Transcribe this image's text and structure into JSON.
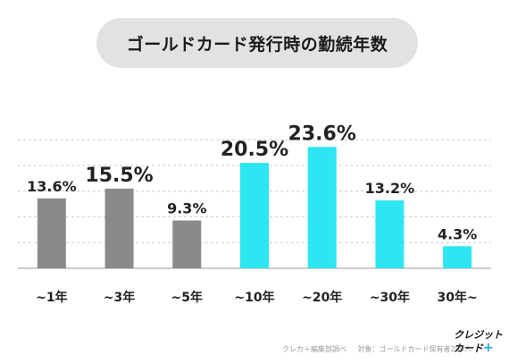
{
  "header": {
    "title": "ゴールドカード発行時の勤続年数"
  },
  "chart_data": {
    "type": "bar",
    "title": "ゴールドカード発行時の勤続年数",
    "categories": [
      "~1年",
      "~3年",
      "~5年",
      "~10年",
      "~20年",
      "~30年",
      "30年~"
    ],
    "values": [
      13.6,
      15.5,
      9.3,
      20.5,
      23.6,
      13.2,
      4.3
    ],
    "value_labels": [
      "13.6%",
      "15.5%",
      "9.3%",
      "20.5%",
      "23.6%",
      "13.2%",
      "4.3%"
    ],
    "unit": "%",
    "ylim": [
      0,
      25
    ],
    "grid": true,
    "colors": [
      "#8a8a8a",
      "#8a8a8a",
      "#8a8a8a",
      "#2de6f2",
      "#2de6f2",
      "#2de6f2",
      "#2de6f2"
    ],
    "label_emphasis": [
      "normal",
      "large",
      "normal",
      "large",
      "large",
      "normal",
      "normal"
    ]
  },
  "footer": {
    "source": "クレカ＋編集部調べ",
    "target": "対象：ゴールドカード保有者259人"
  },
  "logo": {
    "line1": "クレジット",
    "line2": "カード",
    "plus": "+"
  },
  "colors": {
    "gray_bar": "#8a8a8a",
    "cyan_bar": "#2de6f2",
    "title_bg": "#e2e2e2",
    "grid": "#cccccc"
  }
}
